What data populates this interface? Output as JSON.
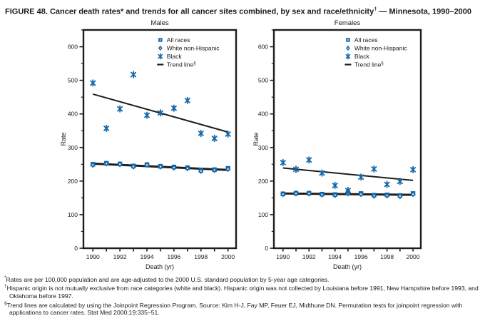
{
  "figure": {
    "title_prefix": "FIGURE 48. Cancer death rates* and trends for all cancer sites combined, by sex and race/ethnicity",
    "title_sup": "†",
    "title_suffix": " — Minnesota, 1990–2000"
  },
  "colors": {
    "marker_blue": "#1667a9",
    "trend_black": "#1d1d1b",
    "axis_black": "#1d1d1b"
  },
  "legend": {
    "items": [
      {
        "label": "All races",
        "marker": "square"
      },
      {
        "label": "White non-Hispanic",
        "marker": "diamond"
      },
      {
        "label": "Black",
        "marker": "asterisk"
      },
      {
        "label": "Trend line",
        "sup": "§",
        "marker": "dash"
      }
    ]
  },
  "chart_data": [
    {
      "type": "scatter",
      "title": "Males",
      "xlabel": "Death (yr)",
      "ylabel": "Rate",
      "x": [
        1990,
        1991,
        1992,
        1993,
        1994,
        1995,
        1996,
        1997,
        1998,
        1999,
        2000
      ],
      "xticks_labeled": [
        1990,
        1992,
        1994,
        1996,
        1998,
        2000
      ],
      "xlim": [
        1989.3,
        2000.6
      ],
      "ylim": [
        0,
        650
      ],
      "yticks_major": [
        0,
        100,
        200,
        300,
        400,
        500,
        600
      ],
      "ytick_minor_step": 50,
      "grid": false,
      "legend_position": "upper-right-inside",
      "series": [
        {
          "name": "All races",
          "marker": "square",
          "values": [
            250,
            253,
            251,
            245,
            249,
            244,
            242,
            240,
            232,
            234,
            238
          ]
        },
        {
          "name": "White non-Hispanic",
          "marker": "diamond",
          "values": [
            248,
            252,
            250,
            243,
            248,
            243,
            240,
            238,
            230,
            233,
            236
          ]
        },
        {
          "name": "Black",
          "marker": "asterisk",
          "values": [
            492,
            357,
            415,
            517,
            396,
            403,
            417,
            440,
            342,
            327,
            340
          ]
        },
        {
          "name": "Trend line (Black)",
          "type": "trend",
          "stroke_width": 2,
          "x": [
            1990,
            2000
          ],
          "y": [
            459,
            346
          ]
        },
        {
          "name": "Trend line (All races / White non-Hispanic)",
          "type": "trend",
          "stroke_width": 3,
          "x": [
            1990,
            2000
          ],
          "y": [
            252,
            233
          ]
        }
      ]
    },
    {
      "type": "scatter",
      "title": "Females",
      "xlabel": "Death (yr)",
      "ylabel": "Rate",
      "x": [
        1990,
        1991,
        1992,
        1993,
        1994,
        1995,
        1996,
        1997,
        1998,
        1999,
        2000
      ],
      "xticks_labeled": [
        1990,
        1992,
        1994,
        1996,
        1998,
        2000
      ],
      "xlim": [
        1989.3,
        2000.6
      ],
      "ylim": [
        0,
        650
      ],
      "yticks_major": [
        0,
        100,
        200,
        300,
        400,
        500,
        600
      ],
      "ytick_minor_step": 50,
      "grid": false,
      "legend_position": "upper-right-inside",
      "series": [
        {
          "name": "All races",
          "marker": "square",
          "values": [
            162,
            164,
            164,
            161,
            160,
            166,
            163,
            158,
            159,
            157,
            163
          ]
        },
        {
          "name": "White non-Hispanic",
          "marker": "diamond",
          "values": [
            161,
            163,
            163,
            160,
            158,
            163,
            161,
            156,
            157,
            155,
            161
          ]
        },
        {
          "name": "Black",
          "marker": "asterisk",
          "values": [
            255,
            235,
            263,
            224,
            187,
            172,
            212,
            236,
            190,
            199,
            234
          ]
        },
        {
          "name": "Trend line (Black)",
          "type": "trend",
          "stroke_width": 2,
          "x": [
            1990,
            2000
          ],
          "y": [
            239,
            202
          ]
        },
        {
          "name": "Trend line (All races / White non-Hispanic)",
          "type": "trend",
          "stroke_width": 3,
          "x": [
            1990,
            2000
          ],
          "y": [
            163,
            159
          ]
        }
      ]
    }
  ],
  "footnotes": [
    {
      "marker": "*",
      "text": "Rates are per 100,000 population and are age-adjusted to the 2000 U.S. standard population by 5-year age categories."
    },
    {
      "marker": "†",
      "text": "Hispanic origin is not mutually exclusive from race categories (white and black). Hispanic origin was not collected by Louisiana before 1991, New Hampshire before 1993, and Oklahoma before 1997."
    },
    {
      "marker": "§",
      "text": "Trend lines are calculated by using the Joinpoint Regression Program. Source: Kim H-J, Fay MP, Feuer EJ, Midthune DN. Permutation tests for joinpoint regression with applications to cancer rates. Stat Med 2000;19:335–51."
    }
  ]
}
